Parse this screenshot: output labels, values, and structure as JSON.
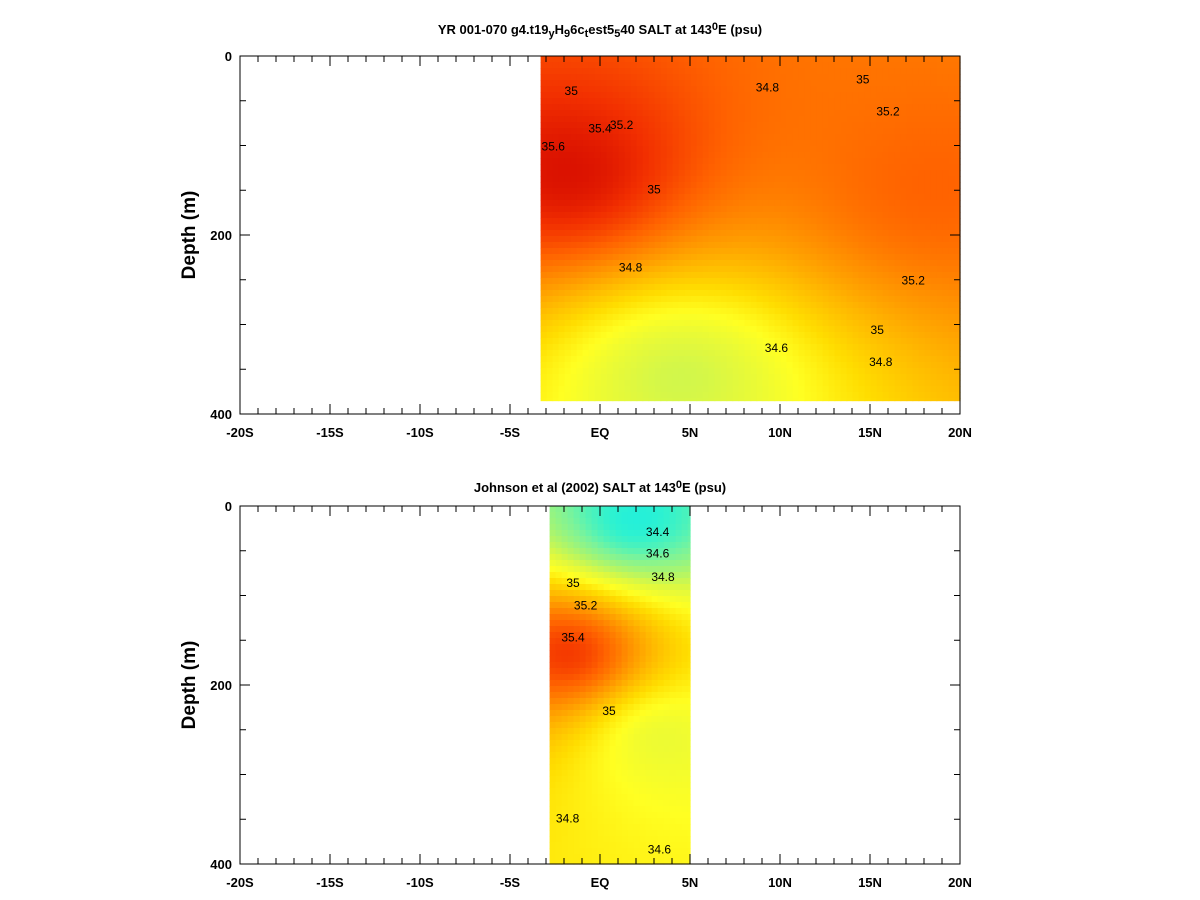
{
  "colors": {
    "salinity_scale": [
      "#00e5ff",
      "#2ef2d0",
      "#7cf39a",
      "#aef56a",
      "#dff83f",
      "#ffff22",
      "#ffdd00",
      "#ffb800",
      "#ff8f00",
      "#ff6200",
      "#f22f00",
      "#cc0000"
    ],
    "contour_line": "#000000",
    "frame": "#000000"
  },
  "chart_data": [
    {
      "type": "heatmap",
      "title_parts": [
        "YR 001-070 g4.t19",
        "y",
        "H",
        "9",
        "6c",
        "t",
        "est5",
        "5",
        "40 SALT at 143",
        "0",
        "E (psu)"
      ],
      "title_styles": [
        "n",
        "sub",
        "n",
        "sub",
        "n",
        "sub",
        "n",
        "sub",
        "n",
        "sup",
        "n"
      ],
      "xlabel": "",
      "ylabel": "Depth (m)",
      "xlim": [
        -20,
        20
      ],
      "ylim": [
        0,
        400
      ],
      "y_inverted": true,
      "x_ticks": [
        -20,
        -15,
        -10,
        -5,
        0,
        5,
        10,
        15,
        20
      ],
      "x_tick_labels": [
        "-20S",
        "-15S",
        "-10S",
        "-5S",
        "EQ",
        "5N",
        "10N",
        "15N",
        "20N"
      ],
      "y_ticks": [
        0,
        200,
        400
      ],
      "y_tick_labels": [
        "0",
        "200",
        "400"
      ],
      "data_extent": {
        "x": [
          -3.3,
          20
        ],
        "depth": [
          0,
          385
        ]
      },
      "cores": [
        {
          "x": -1.8,
          "depth": 130,
          "salinity": 35.6
        },
        {
          "x": 18.5,
          "depth": 145,
          "salinity": 35.35
        },
        {
          "x": 4.5,
          "depth": 360,
          "salinity": 34.55
        }
      ],
      "contour_labels": [
        {
          "x": -1.6,
          "depth": 40,
          "text": "35"
        },
        {
          "x": 9.3,
          "depth": 36,
          "text": "34.8"
        },
        {
          "x": 14.6,
          "depth": 27,
          "text": "35"
        },
        {
          "x": 16.0,
          "depth": 63,
          "text": "35.2"
        },
        {
          "x": 0.0,
          "depth": 82,
          "text": "35.4"
        },
        {
          "x": 1.2,
          "depth": 78,
          "text": "35.2"
        },
        {
          "x": -2.6,
          "depth": 102,
          "text": "35.6"
        },
        {
          "x": 3.0,
          "depth": 150,
          "text": "35"
        },
        {
          "x": 1.7,
          "depth": 237,
          "text": "34.8"
        },
        {
          "x": 17.4,
          "depth": 252,
          "text": "35.2"
        },
        {
          "x": 15.4,
          "depth": 307,
          "text": "35"
        },
        {
          "x": 9.8,
          "depth": 327,
          "text": "34.6"
        },
        {
          "x": 15.6,
          "depth": 343,
          "text": "34.8"
        }
      ]
    },
    {
      "type": "heatmap",
      "title_parts": [
        "Johnson et al (2002) SALT at 143",
        "0",
        "E (psu)"
      ],
      "title_styles": [
        "n",
        "sup",
        "n"
      ],
      "xlabel": "",
      "ylabel": "Depth (m)",
      "xlim": [
        -20,
        20
      ],
      "ylim": [
        0,
        400
      ],
      "y_inverted": true,
      "x_ticks": [
        -20,
        -15,
        -10,
        -5,
        0,
        5,
        10,
        15,
        20
      ],
      "x_tick_labels": [
        "-20S",
        "-15S",
        "-10S",
        "-5S",
        "EQ",
        "5N",
        "10N",
        "15N",
        "20N"
      ],
      "y_ticks": [
        0,
        200,
        400
      ],
      "y_tick_labels": [
        "0",
        "200",
        "400"
      ],
      "data_extent": {
        "x": [
          -2.8,
          5
        ],
        "depth": [
          0,
          400
        ]
      },
      "cores": [
        {
          "x": -1.8,
          "depth": 165,
          "salinity": 35.5
        },
        {
          "x": 2.0,
          "depth": 15,
          "salinity": 34.1
        },
        {
          "x": 3.5,
          "depth": 260,
          "salinity": 34.65
        }
      ],
      "contour_labels": [
        {
          "x": 3.2,
          "depth": 30,
          "text": "34.4"
        },
        {
          "x": 3.2,
          "depth": 54,
          "text": "34.6"
        },
        {
          "x": 3.5,
          "depth": 80,
          "text": "34.8"
        },
        {
          "x": -1.5,
          "depth": 87,
          "text": "35"
        },
        {
          "x": -0.8,
          "depth": 112,
          "text": "35.2"
        },
        {
          "x": -1.5,
          "depth": 148,
          "text": "35.4"
        },
        {
          "x": 0.5,
          "depth": 230,
          "text": "35"
        },
        {
          "x": -1.8,
          "depth": 350,
          "text": "34.8"
        },
        {
          "x": 3.3,
          "depth": 385,
          "text": "34.6"
        }
      ]
    }
  ]
}
